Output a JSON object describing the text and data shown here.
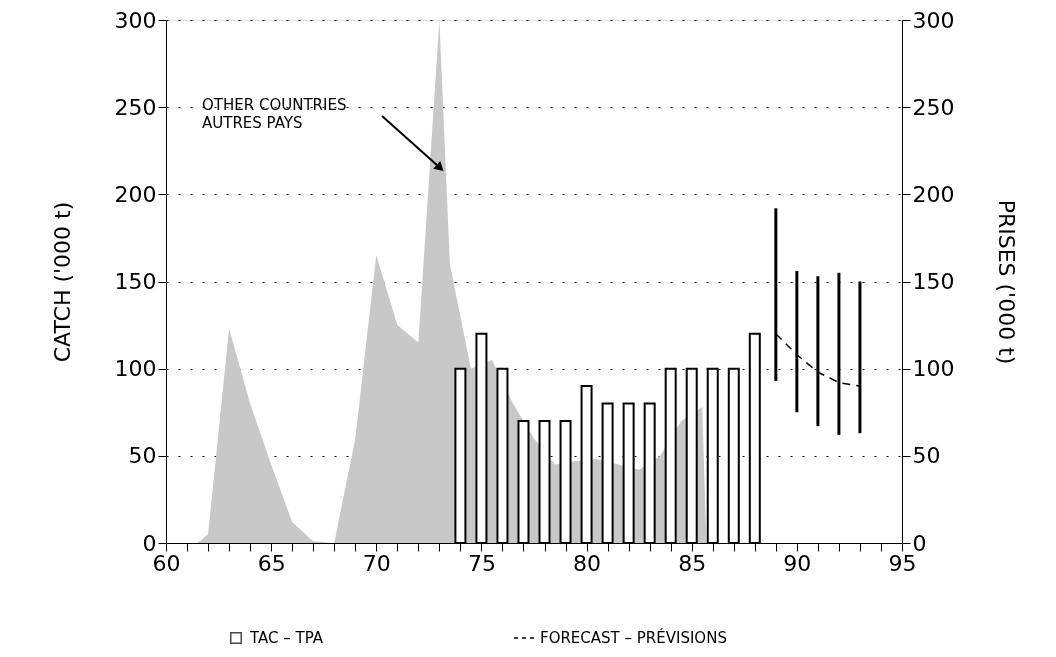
{
  "chart_data": {
    "type": "area",
    "ylabel": "CATCH ('000 t)",
    "y2label": "PRISES ('000 t)",
    "xlim": [
      60,
      95
    ],
    "xticks": [
      60,
      {
        "value": 61,
        "label": null
      },
      {
        "value": 62,
        "label": null
      },
      {
        "value": 63,
        "label": null
      },
      {
        "value": 64,
        "label": null
      },
      65,
      {
        "value": 66,
        "label": null
      },
      {
        "value": 67,
        "label": null
      },
      {
        "value": 68,
        "label": null
      },
      {
        "value": 69,
        "label": null
      },
      70,
      {
        "value": 71,
        "label": null
      },
      {
        "value": 72,
        "label": null
      },
      {
        "value": 73,
        "label": null
      },
      {
        "value": 74,
        "label": null
      },
      75,
      {
        "value": 76,
        "label": null
      },
      {
        "value": 77,
        "label": null
      },
      {
        "value": 78,
        "label": null
      },
      {
        "value": 79,
        "label": null
      },
      80,
      {
        "value": 81,
        "label": null
      },
      {
        "value": 82,
        "label": null
      },
      {
        "value": 83,
        "label": null
      },
      {
        "value": 84,
        "label": null
      },
      85,
      {
        "value": 86,
        "label": null
      },
      {
        "value": 87,
        "label": null
      },
      {
        "value": 88,
        "label": null
      },
      {
        "value": 89,
        "label": null
      },
      90,
      {
        "value": 91,
        "label": null
      },
      {
        "value": 92,
        "label": null
      },
      {
        "value": 93,
        "label": null
      },
      {
        "value": 94,
        "label": null
      },
      95
    ],
    "ylim": [
      0,
      300
    ],
    "yticks": [
      0,
      50,
      100,
      150,
      200,
      250,
      300
    ],
    "y2lim": [
      0,
      300
    ],
    "y2ticks": [
      0,
      50,
      100,
      150,
      200,
      250,
      300
    ],
    "grid": "y",
    "legend": "bottom",
    "annotations": [
      "OTHER COUNTRIES\nAUTRES PAYS"
    ],
    "series": [
      {
        "color": "#c8c8c8",
        "x": [
          60,
          61.5,
          62,
          63,
          64,
          65,
          66,
          67,
          68,
          69,
          70,
          71,
          72,
          73,
          73.5,
          74.5,
          75.5,
          76.5,
          77.5,
          78.5,
          79.5,
          80.5,
          81.5,
          82.5,
          83.5,
          84.5,
          85.5,
          85.7
        ],
        "values": [
          0,
          0,
          5,
          123,
          80,
          45,
          12,
          1,
          0,
          60,
          165,
          125,
          115,
          300,
          160,
          100,
          105,
          80,
          60,
          45,
          47,
          48,
          45,
          42,
          50,
          70,
          78,
          0
        ]
      },
      {
        "name": "TAC – TPA",
        "type": "bar",
        "color": "#000000",
        "x": [
          74,
          75,
          76,
          77,
          78,
          79,
          80,
          81,
          82,
          83,
          84,
          85,
          86,
          87,
          88
        ],
        "values": [
          100,
          120,
          100,
          70,
          70,
          70,
          90,
          80,
          80,
          80,
          100,
          100,
          100,
          100,
          120
        ]
      },
      {
        "name": "FORECAST – PRÉVISIONS",
        "type": "line",
        "color": "#000000",
        "line_style": "dashed",
        "marker": "none",
        "x": [
          89,
          90,
          91,
          92,
          93
        ],
        "values": [
          120,
          108,
          98,
          92,
          90
        ],
        "errors": [
          [
            93,
            192
          ],
          [
            75,
            156
          ],
          [
            67,
            153
          ],
          [
            62,
            155
          ],
          [
            63,
            150
          ]
        ]
      }
    ]
  }
}
